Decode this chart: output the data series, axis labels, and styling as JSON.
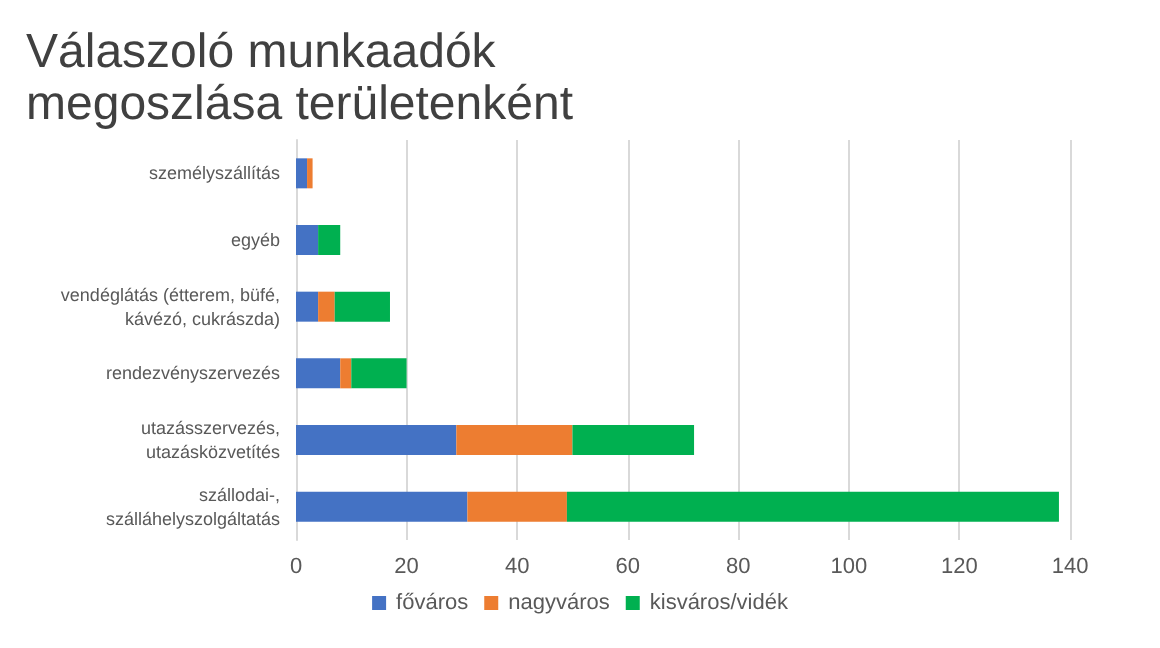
{
  "chart_data": {
    "type": "bar",
    "title": "Válaszoló munkaadók megoszlása területenként",
    "orientation": "horizontal",
    "stacked": true,
    "categories": [
      "személyszállítás",
      "egyéb",
      "vendéglátás (étterem, büfé,\nkávézó, cukrászda)",
      "rendezvényszervezés",
      "utazásszervezés,\nutazásközvetítés",
      "szállodai-,\nszálláhelyszolgáltatás"
    ],
    "series": [
      {
        "name": "főváros",
        "color": "#4472c4",
        "values": [
          2,
          4,
          4,
          8,
          29,
          31
        ]
      },
      {
        "name": "nagyváros",
        "color": "#ed7d31",
        "values": [
          1,
          0,
          3,
          2,
          21,
          18
        ]
      },
      {
        "name": "kisváros/vidék",
        "color": "#00b050",
        "values": [
          0,
          4,
          10,
          10,
          22,
          89
        ]
      }
    ],
    "xlim": [
      0,
      140
    ],
    "xticks": [
      0,
      20,
      40,
      60,
      80,
      100,
      120,
      140
    ],
    "grid": "x",
    "legend": "bottom"
  }
}
